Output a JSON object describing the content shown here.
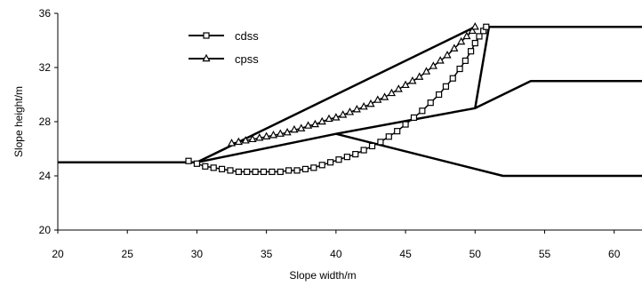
{
  "chart_data": {
    "type": "line",
    "xlabel": "Slope width/m",
    "ylabel": "Slope height/m",
    "xlim": [
      20,
      62
    ],
    "ylim": [
      20,
      36
    ],
    "xticks": [
      "20",
      "25",
      "30",
      "35",
      "40",
      "45",
      "50",
      "55",
      "60"
    ],
    "yticks": [
      "20",
      "24",
      "28",
      "32",
      "36"
    ],
    "grid": false,
    "legend_placement": "top-left",
    "geometry_lines": [
      {
        "x": [
          20,
          30,
          40,
          50,
          51,
          62
        ],
        "y": [
          25,
          25,
          27.1,
          29,
          35,
          35
        ]
      },
      {
        "x": [
          30,
          50
        ],
        "y": [
          25,
          35
        ]
      },
      {
        "x": [
          40,
          52,
          62
        ],
        "y": [
          27.1,
          24,
          24
        ]
      },
      {
        "x": [
          50,
          54,
          62
        ],
        "y": [
          29,
          31,
          31
        ]
      }
    ],
    "series": [
      {
        "name": "cdss",
        "marker": "square",
        "x": [
          29.4,
          30.0,
          30.6,
          31.2,
          31.8,
          32.4,
          33.0,
          33.6,
          34.2,
          34.8,
          35.4,
          36.0,
          36.6,
          37.2,
          37.8,
          38.4,
          39.0,
          39.6,
          40.2,
          40.8,
          41.4,
          42.0,
          42.6,
          43.2,
          43.8,
          44.4,
          45.0,
          45.6,
          46.2,
          46.8,
          47.4,
          47.9,
          48.4,
          48.9,
          49.3,
          49.7,
          50.0,
          50.3,
          50.6,
          50.8
        ],
        "y": [
          25.1,
          24.9,
          24.7,
          24.6,
          24.5,
          24.4,
          24.3,
          24.3,
          24.3,
          24.3,
          24.3,
          24.3,
          24.4,
          24.4,
          24.5,
          24.6,
          24.8,
          25.0,
          25.2,
          25.4,
          25.6,
          25.9,
          26.2,
          26.5,
          26.9,
          27.3,
          27.8,
          28.3,
          28.8,
          29.4,
          30.0,
          30.6,
          31.2,
          31.9,
          32.5,
          33.2,
          33.8,
          34.3,
          34.7,
          35.0
        ]
      },
      {
        "name": "cpss",
        "marker": "triangle",
        "x": [
          32.5,
          33.0,
          33.5,
          34.0,
          34.5,
          35.0,
          35.5,
          36.0,
          36.5,
          37.0,
          37.5,
          38.0,
          38.5,
          39.0,
          39.5,
          40.0,
          40.5,
          41.0,
          41.5,
          42.0,
          42.5,
          43.0,
          43.5,
          44.0,
          44.5,
          45.0,
          45.5,
          46.0,
          46.5,
          47.0,
          47.5,
          48.0,
          48.5,
          49.0,
          49.4,
          49.8,
          50.0
        ],
        "y": [
          26.4,
          26.5,
          26.6,
          26.7,
          26.8,
          26.9,
          27.0,
          27.1,
          27.2,
          27.4,
          27.5,
          27.7,
          27.8,
          28.0,
          28.2,
          28.3,
          28.5,
          28.7,
          28.9,
          29.1,
          29.3,
          29.6,
          29.8,
          30.1,
          30.4,
          30.7,
          31.0,
          31.3,
          31.7,
          32.1,
          32.5,
          32.9,
          33.4,
          33.9,
          34.3,
          34.7,
          35.0
        ]
      }
    ]
  }
}
